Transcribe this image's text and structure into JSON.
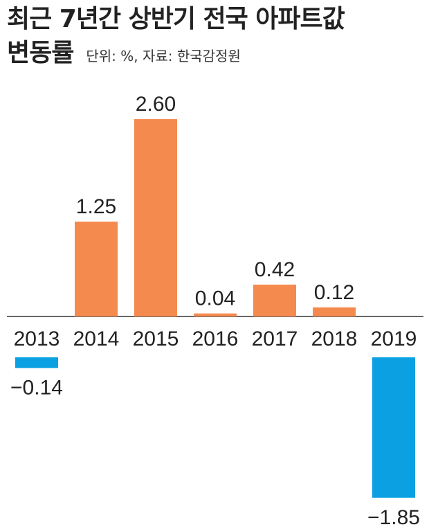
{
  "title_line1": "최근 7년간 상반기 전국 아파트값",
  "title_line2": "변동률",
  "unit_note": "단위: %, 자료: 한국감정원",
  "chart_data": {
    "type": "bar",
    "title": "최근 7년간 상반기 전국 아파트값 변동률",
    "categories": [
      "2013",
      "2014",
      "2015",
      "2016",
      "2017",
      "2018",
      "2019"
    ],
    "values": [
      -0.14,
      1.25,
      2.6,
      0.04,
      0.42,
      0.12,
      -1.85
    ],
    "labels": [
      "−0.14",
      "1.25",
      "2.60",
      "0.04",
      "0.42",
      "0.12",
      "−1.85"
    ],
    "unit": "%",
    "source": "한국감정원",
    "colors": {
      "positive": "#f58a4f",
      "negative": "#0aa0e2"
    },
    "grid": false,
    "legend": "none"
  }
}
